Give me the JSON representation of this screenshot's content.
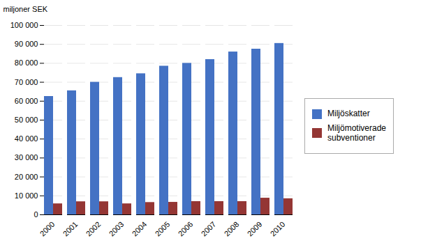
{
  "chart_data": {
    "type": "bar",
    "ylabel": "miljoner SEK",
    "categories": [
      "2000",
      "2001",
      "2002",
      "2003",
      "2004",
      "2005",
      "2006",
      "2007",
      "2008",
      "2009",
      "2010"
    ],
    "series": [
      {
        "name": "Miljöskatter",
        "color": "#4472C4",
        "values": [
          62500,
          65500,
          70000,
          72500,
          74500,
          78500,
          80000,
          82000,
          86000,
          87500,
          90500
        ]
      },
      {
        "name": "Miljömotiverade\nsubventioner",
        "color": "#943634",
        "values": [
          5800,
          6900,
          6900,
          5800,
          6500,
          6600,
          7000,
          7000,
          7000,
          8800,
          8500
        ]
      }
    ],
    "ylim": [
      0,
      100000
    ],
    "yticks": [
      0,
      {
        "value": 10000,
        "label": "10 000"
      },
      {
        "value": 20000,
        "label": "20 000"
      },
      {
        "value": 30000,
        "label": "30 000"
      },
      {
        "value": 40000,
        "label": "40 000"
      },
      {
        "value": 50000,
        "label": "50 000"
      },
      {
        "value": 60000,
        "label": "60 000"
      },
      {
        "value": 70000,
        "label": "70 000"
      },
      {
        "value": 80000,
        "label": "80 000"
      },
      {
        "value": 90000,
        "label": "90 000"
      },
      {
        "value": 100000,
        "label": "100 000"
      }
    ],
    "grid": true,
    "legend": "right"
  }
}
